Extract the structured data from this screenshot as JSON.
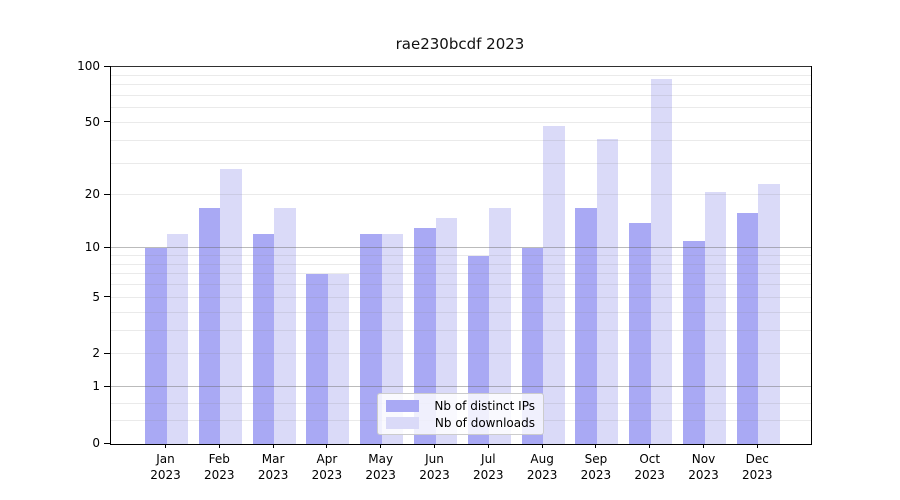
{
  "chart_data": {
    "type": "bar",
    "title": "rae230bcdf 2023",
    "categories": [
      "Jan",
      "Feb",
      "Mar",
      "Apr",
      "May",
      "Jun",
      "Jul",
      "Aug",
      "Sep",
      "Oct",
      "Nov",
      "Dec"
    ],
    "year_label": "2023",
    "series": [
      {
        "name": "Nb of distinct IPs",
        "color": "#a9a9f4",
        "values": [
          10,
          17,
          12,
          7,
          12,
          13,
          9,
          10,
          17,
          14,
          11,
          16
        ]
      },
      {
        "name": "Nb of downloads",
        "color": "#dadaf8",
        "values": [
          12,
          28,
          17,
          7,
          12,
          15,
          17,
          48,
          41,
          86,
          21,
          23
        ]
      }
    ],
    "y_axis": {
      "scale": "log1p",
      "ticks": [
        0,
        1,
        2,
        5,
        10,
        20,
        50,
        100
      ],
      "max": 100
    },
    "grid": {
      "major": [
        1,
        10,
        100
      ],
      "minor": [
        0.33,
        0.63,
        2,
        3,
        4,
        5,
        6,
        7,
        8,
        9,
        20,
        30,
        40,
        50,
        60,
        70,
        80,
        90
      ]
    },
    "legend": {
      "position": "lower-center",
      "entries": [
        "Nb of distinct IPs",
        "Nb of downloads"
      ]
    }
  }
}
